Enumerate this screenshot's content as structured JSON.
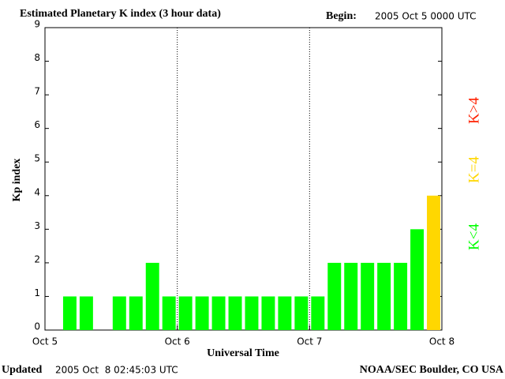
{
  "chart_data": {
    "type": "bar",
    "title": "Estimated Planetary K index (3 hour data)",
    "begin_label": "Begin:",
    "begin_value": "2005 Oct 5 0000 UTC",
    "y_label": "Kp index",
    "x_label": "Universal Time",
    "x_tick_labels": [
      "Oct 5",
      "Oct 6",
      "Oct 7",
      "Oct 8"
    ],
    "values": [
      0,
      1,
      1,
      0,
      1,
      1,
      2,
      1,
      1,
      1,
      1,
      1,
      1,
      1,
      1,
      1,
      1,
      2,
      2,
      2,
      2,
      2,
      3,
      4
    ],
    "colors": [
      "#00ff00",
      "#00ff00",
      "#00ff00",
      "#00ff00",
      "#00ff00",
      "#00ff00",
      "#00ff00",
      "#00ff00",
      "#00ff00",
      "#00ff00",
      "#00ff00",
      "#00ff00",
      "#00ff00",
      "#00ff00",
      "#00ff00",
      "#00ff00",
      "#00ff00",
      "#00ff00",
      "#00ff00",
      "#00ff00",
      "#00ff00",
      "#00ff00",
      "#00ff00",
      "#ffd700"
    ],
    "ylim": [
      0,
      9
    ],
    "yticks": [
      0,
      1,
      2,
      3,
      4,
      5,
      6,
      7,
      8,
      9
    ],
    "legend": [
      {
        "label": "K<4",
        "color": "#00ff00"
      },
      {
        "label": "K=4",
        "color": "#ffd700"
      },
      {
        "label": "K>4",
        "color": "#ff2000"
      }
    ],
    "updated_label": "Updated",
    "updated_value": "2005 Oct  8 02:45:03 UTC",
    "source": "NOAA/SEC Boulder, CO USA"
  }
}
